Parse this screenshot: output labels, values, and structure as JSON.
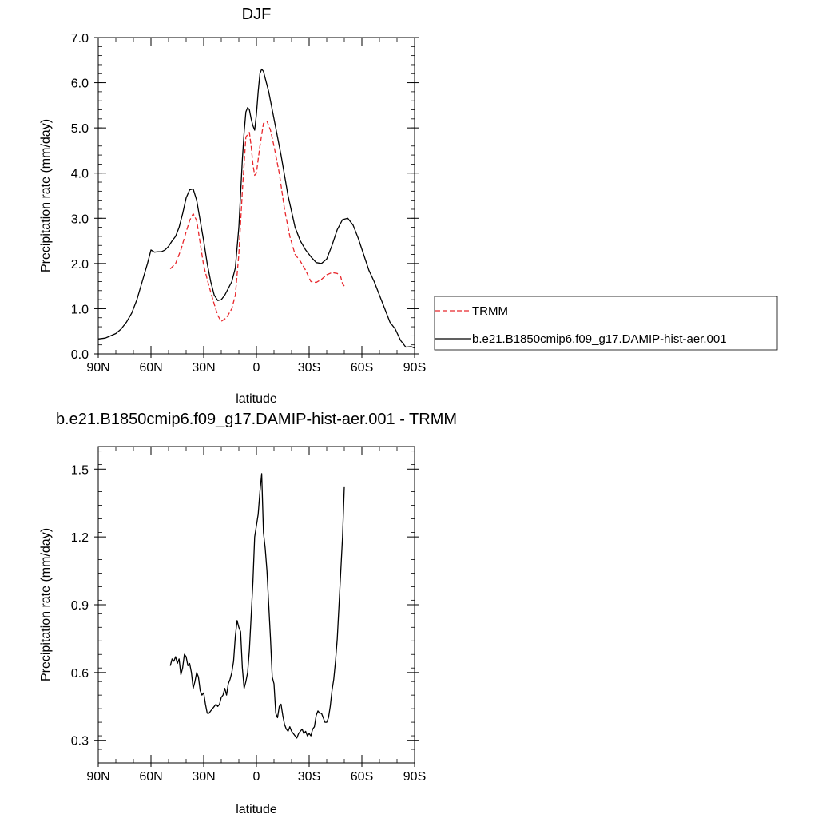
{
  "chart_data": [
    {
      "type": "line",
      "title": "DJF",
      "xlabel": "latitude",
      "ylabel": "Precipitation rate (mm/day)",
      "xlim": [
        -90,
        90
      ],
      "ylim": [
        0,
        7
      ],
      "x_ticks": [
        -90,
        -60,
        -30,
        0,
        30,
        60,
        90
      ],
      "x_tick_labels": [
        "90N",
        "60N",
        "30N",
        "0",
        "30S",
        "60S",
        "90S"
      ],
      "y_ticks": [
        0,
        1,
        2,
        3,
        4,
        5,
        6,
        7
      ],
      "y_tick_labels": [
        "0.0",
        "1.0",
        "2.0",
        "3.0",
        "4.0",
        "5.0",
        "6.0",
        "7.0"
      ],
      "grid": false,
      "legend_position": "right",
      "legend": [
        "TRMM",
        "b.e21.B1850cmip6.f09_g17.DAMIP-hist-aer.001"
      ],
      "series": [
        {
          "name": "TRMM",
          "color": "#e8262b",
          "dash": "dashed",
          "x": [
            -49,
            -46,
            -43,
            -40,
            -38,
            -36,
            -34,
            -32,
            -30,
            -27,
            -24,
            -22,
            -20,
            -17,
            -14,
            -12,
            -10,
            -8,
            -6,
            -4,
            -3,
            -2,
            -1,
            0,
            2,
            4,
            6,
            8,
            10,
            13,
            16,
            19,
            22,
            25,
            28,
            31,
            34,
            37,
            40,
            43,
            46,
            48,
            49,
            50
          ],
          "values": [
            1.88,
            2.0,
            2.3,
            2.7,
            2.95,
            3.1,
            2.95,
            2.45,
            1.95,
            1.5,
            1.1,
            0.85,
            0.72,
            0.8,
            1.0,
            1.3,
            2.2,
            3.6,
            4.8,
            4.9,
            4.6,
            4.2,
            3.95,
            4.0,
            4.6,
            5.1,
            5.15,
            4.95,
            4.6,
            4.0,
            3.2,
            2.6,
            2.2,
            2.05,
            1.85,
            1.6,
            1.58,
            1.65,
            1.75,
            1.8,
            1.78,
            1.7,
            1.55,
            1.5
          ]
        },
        {
          "name": "b.e21.B1850cmip6.f09_g17.DAMIP-hist-aer.001",
          "color": "#000000",
          "dash": "solid",
          "x": [
            -90,
            -86,
            -83,
            -80,
            -77,
            -74,
            -71,
            -68,
            -65,
            -62,
            -60,
            -58,
            -56,
            -54,
            -52,
            -50,
            -48,
            -46,
            -44,
            -42,
            -40,
            -38,
            -36,
            -34,
            -32,
            -30,
            -28,
            -26,
            -24,
            -22,
            -20,
            -18,
            -16,
            -14,
            -12,
            -10,
            -8,
            -7,
            -6,
            -5,
            -4,
            -3,
            -2,
            -1,
            0,
            1,
            2,
            3,
            4,
            5,
            6,
            7,
            8,
            10,
            12,
            14,
            16,
            18,
            20,
            22,
            25,
            28,
            31,
            34,
            37,
            40,
            43,
            46,
            49,
            52,
            55,
            58,
            61,
            64,
            67,
            70,
            73,
            76,
            79,
            82,
            85,
            88,
            90
          ],
          "values": [
            0.33,
            0.35,
            0.4,
            0.45,
            0.55,
            0.7,
            0.9,
            1.2,
            1.6,
            2.0,
            2.3,
            2.25,
            2.26,
            2.26,
            2.3,
            2.38,
            2.5,
            2.6,
            2.8,
            3.1,
            3.45,
            3.63,
            3.65,
            3.4,
            2.95,
            2.5,
            2.0,
            1.6,
            1.3,
            1.18,
            1.2,
            1.3,
            1.45,
            1.6,
            1.9,
            2.8,
            4.3,
            4.9,
            5.35,
            5.45,
            5.4,
            5.2,
            5.05,
            4.95,
            5.3,
            5.8,
            6.2,
            6.3,
            6.25,
            6.1,
            5.95,
            5.8,
            5.6,
            5.2,
            4.8,
            4.4,
            3.95,
            3.5,
            3.15,
            2.8,
            2.5,
            2.3,
            2.15,
            2.02,
            2.0,
            2.1,
            2.4,
            2.75,
            2.97,
            3.0,
            2.85,
            2.55,
            2.2,
            1.85,
            1.6,
            1.3,
            1.0,
            0.7,
            0.55,
            0.3,
            0.15,
            0.16,
            0.13
          ]
        }
      ]
    },
    {
      "type": "line",
      "title": "b.e21.B1850cmip6.f09_g17.DAMIP-hist-aer.001 - TRMM",
      "xlabel": "latitude",
      "ylabel": "Precipitation rate (mm/day)",
      "xlim": [
        -90,
        90
      ],
      "ylim": [
        0.2,
        1.6
      ],
      "x_ticks": [
        -90,
        -60,
        -30,
        0,
        30,
        60,
        90
      ],
      "x_tick_labels": [
        "90N",
        "60N",
        "30N",
        "0",
        "30S",
        "60S",
        "90S"
      ],
      "y_ticks": [
        0.3,
        0.6,
        0.9,
        1.2,
        1.5
      ],
      "y_tick_labels": [
        "0.3",
        "0.6",
        "0.9",
        "1.2",
        "1.5"
      ],
      "grid": false,
      "series": [
        {
          "color": "#000000",
          "dash": "solid",
          "x": [
            -49,
            -48,
            -47,
            -46,
            -45,
            -44,
            -43,
            -42,
            -41,
            -40,
            -39,
            -38,
            -37,
            -36,
            -35,
            -34,
            -33,
            -32,
            -31,
            -30,
            -29,
            -28,
            -27,
            -26,
            -25,
            -24,
            -23,
            -22,
            -21,
            -20,
            -19,
            -18,
            -17,
            -16,
            -15,
            -14,
            -13,
            -12,
            -11,
            -10,
            -9,
            -8,
            -7,
            -6,
            -5,
            -4,
            -3,
            -2,
            -1,
            0,
            1,
            2,
            3,
            4,
            5,
            6,
            7,
            8,
            9,
            10,
            11,
            12,
            13,
            14,
            15,
            16,
            17,
            18,
            19,
            20,
            21,
            22,
            23,
            24,
            25,
            26,
            27,
            28,
            29,
            30,
            31,
            32,
            33,
            34,
            35,
            36,
            37,
            38,
            39,
            40,
            41,
            42,
            43,
            44,
            45,
            46,
            47,
            48,
            49,
            50
          ],
          "values": [
            0.63,
            0.66,
            0.65,
            0.67,
            0.64,
            0.66,
            0.59,
            0.62,
            0.68,
            0.67,
            0.63,
            0.64,
            0.6,
            0.53,
            0.56,
            0.6,
            0.58,
            0.52,
            0.5,
            0.51,
            0.46,
            0.42,
            0.42,
            0.43,
            0.44,
            0.45,
            0.46,
            0.45,
            0.46,
            0.49,
            0.5,
            0.53,
            0.5,
            0.55,
            0.57,
            0.6,
            0.65,
            0.76,
            0.83,
            0.8,
            0.78,
            0.62,
            0.53,
            0.56,
            0.6,
            0.7,
            0.85,
            1.0,
            1.2,
            1.25,
            1.3,
            1.4,
            1.48,
            1.22,
            1.15,
            1.05,
            0.9,
            0.75,
            0.58,
            0.55,
            0.42,
            0.4,
            0.45,
            0.46,
            0.41,
            0.37,
            0.35,
            0.34,
            0.36,
            0.34,
            0.33,
            0.32,
            0.31,
            0.33,
            0.34,
            0.35,
            0.33,
            0.34,
            0.32,
            0.33,
            0.32,
            0.35,
            0.36,
            0.41,
            0.43,
            0.42,
            0.42,
            0.4,
            0.38,
            0.38,
            0.4,
            0.45,
            0.52,
            0.57,
            0.65,
            0.75,
            0.9,
            1.05,
            1.2,
            1.42
          ]
        }
      ]
    }
  ]
}
